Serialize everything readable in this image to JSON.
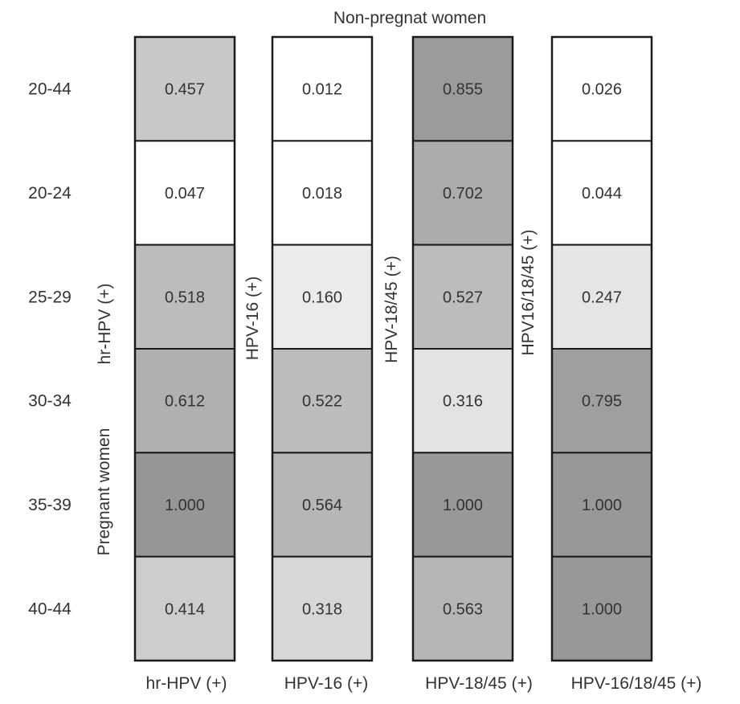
{
  "chart_data": {
    "type": "heatmap",
    "title": "Non-pregnat women",
    "y_group_label": "Pregnant women",
    "rows": [
      "20-44",
      "20-24",
      "25-29",
      "30-34",
      "35-39",
      "40-44"
    ],
    "columns": [
      {
        "x_label": "hr-HPV (+)",
        "side_label": "hr-HPV (+)",
        "values": [
          0.457,
          0.047,
          0.518,
          0.612,
          1.0,
          0.414
        ]
      },
      {
        "x_label": "HPV-16 (+)",
        "side_label": "HPV-16 (+)",
        "values": [
          0.012,
          0.018,
          0.16,
          0.522,
          0.564,
          0.318
        ]
      },
      {
        "x_label": "HPV-18/45 (+)",
        "side_label": "HPV-18/45 (+)",
        "values": [
          0.855,
          0.702,
          0.527,
          0.316,
          1.0,
          0.563
        ]
      },
      {
        "x_label": "HPV-16/18/45 (+)",
        "side_label": "HPV16/18/45 (+)",
        "values": [
          0.026,
          0.044,
          0.247,
          0.795,
          1.0,
          1.0
        ]
      }
    ],
    "value_labels": [
      [
        "0.457",
        "0.047",
        "0.518",
        "0.612",
        "1.000",
        "0.414"
      ],
      [
        "0.012",
        "0.018",
        "0.160",
        "0.522",
        "0.564",
        "0.318"
      ],
      [
        "0.855",
        "0.702",
        "0.527",
        "0.316",
        "1.000",
        "0.563"
      ],
      [
        "0.026",
        "0.044",
        "0.247",
        "0.795",
        "1.000",
        "1.000"
      ]
    ],
    "cell_colors": [
      [
        "#c8c8c8",
        "#ffffff",
        "#bcbcbc",
        "#b0b0b0",
        "#969696",
        "#cdcdcd"
      ],
      [
        "#ffffff",
        "#ffffff",
        "#ebebeb",
        "#bcbcbc",
        "#b6b6b6",
        "#d7d7d7"
      ],
      [
        "#9b9b9b",
        "#acacac",
        "#bcbcbc",
        "#e3e3e3",
        "#989898",
        "#b6b6b6"
      ],
      [
        "#ffffff",
        "#ffffff",
        "#e5e5e5",
        "#9f9f9f",
        "#989898",
        "#989898"
      ]
    ],
    "border_color": "#1a1a1a",
    "text_color": "#333333"
  }
}
